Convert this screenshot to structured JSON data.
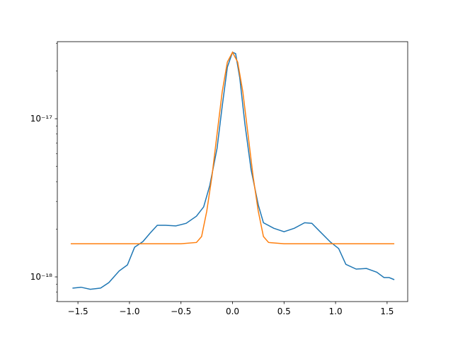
{
  "chart_data": {
    "type": "line",
    "yscale": "log",
    "xlim": [
      -1.7,
      1.7
    ],
    "ylim": [
      6.98e-19,
      3.07e-17
    ],
    "xticks": [
      {
        "value": -1.5,
        "label": "−1.5"
      },
      {
        "value": -1.0,
        "label": "−1.0"
      },
      {
        "value": -0.5,
        "label": "−0.5"
      },
      {
        "value": 0,
        "label": "0.0"
      },
      0.5,
      {
        "value": 1.0,
        "label": "1.0"
      },
      1.5
    ],
    "yticks": [
      {
        "value": 1e-18,
        "label": "10⁻¹⁸"
      },
      {
        "value": 1e-17,
        "label": "10⁻¹⁷"
      }
    ],
    "yminorticks": [
      7e-19,
      8e-19,
      9e-19,
      2e-18,
      3e-18,
      4e-18,
      5e-18,
      6e-18,
      7e-18,
      8e-18,
      9e-18,
      2e-17,
      3e-17
    ],
    "series": [
      {
        "color": "#1f77b4",
        "x": [
          -1.553,
          -1.47,
          -1.38,
          -1.28,
          -1.2,
          -1.1,
          -1.02,
          -0.95,
          -0.87,
          -0.8,
          -0.73,
          -0.65,
          -0.55,
          -0.45,
          -0.35,
          -0.28,
          -0.22,
          -0.15,
          -0.1,
          -0.05,
          0,
          0.03,
          0.07,
          0.12,
          0.18,
          0.25,
          0.3,
          0.4,
          0.5,
          0.6,
          0.7,
          0.77,
          0.85,
          0.95,
          1.03,
          1.1,
          1.2,
          1.3,
          1.4,
          1.47,
          1.52,
          1.57
        ],
        "values": [
          8.49e-19,
          8.6e-19,
          8.35e-19,
          8.5e-19,
          9.2e-19,
          1.09e-18,
          1.19e-18,
          1.54e-18,
          1.67e-18,
          1.89e-18,
          2.12e-18,
          2.12e-18,
          2.1e-18,
          2.18e-18,
          2.42e-18,
          2.77e-18,
          3.8e-18,
          6.5e-18,
          1.2e-17,
          2.12e-17,
          2.63e-17,
          2.58e-17,
          1.82e-17,
          9.3e-18,
          4.77e-18,
          2.85e-18,
          2.2e-18,
          2.03e-18,
          1.93e-18,
          2.03e-18,
          2.2e-18,
          2.18e-18,
          1.93e-18,
          1.66e-18,
          1.51e-18,
          1.2e-18,
          1.12e-18,
          1.13e-18,
          1.07e-18,
          9.9e-19,
          9.9e-19,
          9.6e-19
        ]
      },
      {
        "color": "#ff7f0e",
        "x": [
          -1.57,
          -0.5,
          -0.35,
          -0.3,
          -0.25,
          -0.2,
          -0.15,
          -0.1,
          -0.05,
          0,
          0.05,
          0.1,
          0.15,
          0.2,
          0.25,
          0.3,
          0.35,
          0.5,
          1.57
        ],
        "values": [
          1.62e-18,
          1.62e-18,
          1.65e-18,
          1.8e-18,
          2.6e-18,
          4.3e-18,
          8e-18,
          1.48e-17,
          2.28e-17,
          2.63e-17,
          2.28e-17,
          1.48e-17,
          8e-18,
          4.3e-18,
          2.6e-18,
          1.8e-18,
          1.65e-18,
          1.62e-18,
          1.62e-18
        ]
      }
    ]
  }
}
